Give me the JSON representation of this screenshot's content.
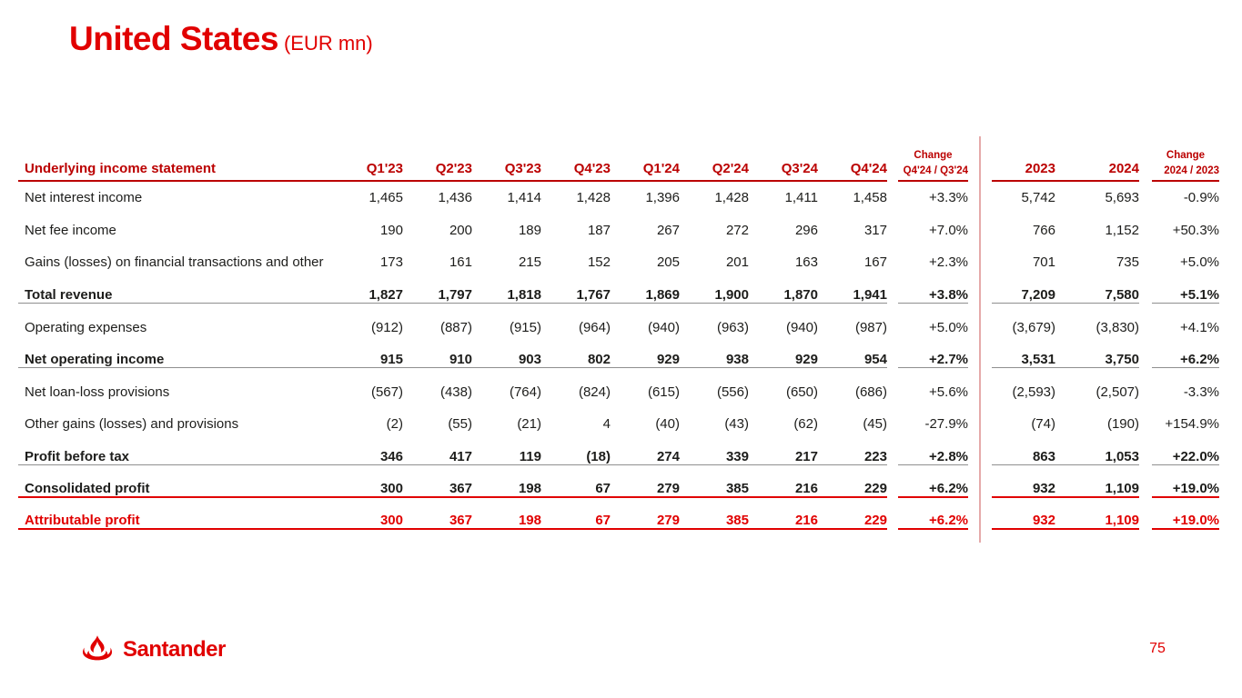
{
  "slide": {
    "title": "United States",
    "title_suffix": "(EUR mn)",
    "brand": "Santander",
    "page_number": "75"
  },
  "colors": {
    "accent_red": "#E10000",
    "header_red": "#BB0000",
    "divider_pink": "#E5AAAA",
    "line_gray": "#8F8F8F",
    "text_black": "#1D1D1B"
  },
  "table": {
    "header": {
      "label": "Underlying income statement",
      "quarters": [
        "Q1'23",
        "Q2'23",
        "Q3'23",
        "Q4'23",
        "Q1'24",
        "Q2'24",
        "Q3'24",
        "Q4'24"
      ],
      "change_q": {
        "line1": "Change",
        "line2": "Q4'24 / Q3'24"
      },
      "years": [
        "2023",
        "2024"
      ],
      "change_y": {
        "line1": "Change",
        "line2": "2024 / 2023"
      }
    },
    "rows": [
      {
        "label": "Net interest income",
        "style": "normal",
        "separator_after": "none",
        "quarters": [
          "1,465",
          "1,436",
          "1,414",
          "1,428",
          "1,396",
          "1,428",
          "1,411",
          "1,458"
        ],
        "change_q": "+3.3%",
        "years": [
          "5,742",
          "5,693"
        ],
        "change_y": "-0.9%"
      },
      {
        "label": "Net fee income",
        "style": "normal",
        "separator_after": "none",
        "quarters": [
          "190",
          "200",
          "189",
          "187",
          "267",
          "272",
          "296",
          "317"
        ],
        "change_q": "+7.0%",
        "years": [
          "766",
          "1,152"
        ],
        "change_y": "+50.3%"
      },
      {
        "label": "Gains (losses) on financial transactions and other",
        "style": "normal",
        "separator_after": "none",
        "quarters": [
          "173",
          "161",
          "215",
          "152",
          "205",
          "201",
          "163",
          "167"
        ],
        "change_q": "+2.3%",
        "years": [
          "701",
          "735"
        ],
        "change_y": "+5.0%"
      },
      {
        "label": "Total revenue",
        "style": "bold",
        "separator_after": "gray",
        "quarters": [
          "1,827",
          "1,797",
          "1,818",
          "1,767",
          "1,869",
          "1,900",
          "1,870",
          "1,941"
        ],
        "change_q": "+3.8%",
        "years": [
          "7,209",
          "7,580"
        ],
        "change_y": "+5.1%"
      },
      {
        "label": "Operating expenses",
        "style": "normal",
        "separator_after": "none",
        "quarters": [
          "(912)",
          "(887)",
          "(915)",
          "(964)",
          "(940)",
          "(963)",
          "(940)",
          "(987)"
        ],
        "change_q": "+5.0%",
        "years": [
          "(3,679)",
          "(3,830)"
        ],
        "change_y": "+4.1%"
      },
      {
        "label": "Net operating income",
        "style": "bold",
        "separator_after": "gray",
        "quarters": [
          "915",
          "910",
          "903",
          "802",
          "929",
          "938",
          "929",
          "954"
        ],
        "change_q": "+2.7%",
        "years": [
          "3,531",
          "3,750"
        ],
        "change_y": "+6.2%"
      },
      {
        "label": "Net loan-loss provisions",
        "style": "normal",
        "separator_after": "none",
        "quarters": [
          "(567)",
          "(438)",
          "(764)",
          "(824)",
          "(615)",
          "(556)",
          "(650)",
          "(686)"
        ],
        "change_q": "+5.6%",
        "years": [
          "(2,593)",
          "(2,507)"
        ],
        "change_y": "-3.3%"
      },
      {
        "label": "Other gains (losses) and provisions",
        "style": "normal",
        "separator_after": "none",
        "quarters": [
          "(2)",
          "(55)",
          "(21)",
          "4",
          "(40)",
          "(43)",
          "(62)",
          "(45)"
        ],
        "change_q": "-27.9%",
        "years": [
          "(74)",
          "(190)"
        ],
        "change_y": "+154.9%"
      },
      {
        "label": "Profit before tax",
        "style": "bold",
        "separator_after": "gray",
        "quarters": [
          "346",
          "417",
          "119",
          "(18)",
          "274",
          "339",
          "217",
          "223"
        ],
        "change_q": "+2.8%",
        "years": [
          "863",
          "1,053"
        ],
        "change_y": "+22.0%"
      },
      {
        "label": "Consolidated profit",
        "style": "bold",
        "separator_after": "red",
        "quarters": [
          "300",
          "367",
          "198",
          "67",
          "279",
          "385",
          "216",
          "229"
        ],
        "change_q": "+6.2%",
        "years": [
          "932",
          "1,109"
        ],
        "change_y": "+19.0%"
      },
      {
        "label": "Attributable profit",
        "style": "bold-red",
        "separator_after": "red",
        "quarters": [
          "300",
          "367",
          "198",
          "67",
          "279",
          "385",
          "216",
          "229"
        ],
        "change_q": "+6.2%",
        "years": [
          "932",
          "1,109"
        ],
        "change_y": "+19.0%"
      }
    ]
  }
}
